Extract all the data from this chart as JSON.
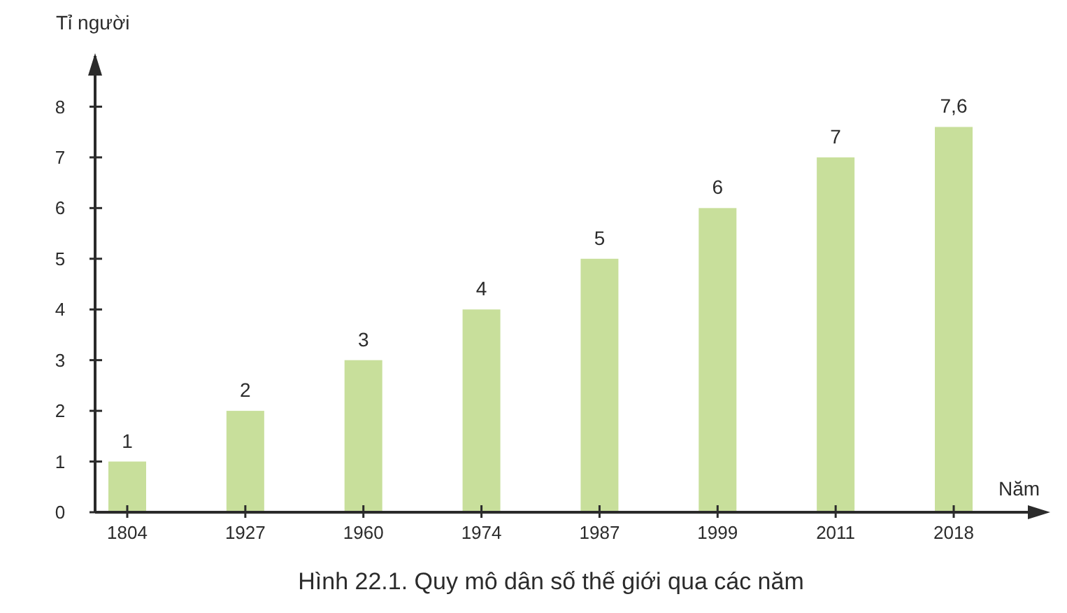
{
  "chart_data": {
    "type": "bar",
    "title": "Hình 22.1. Quy mô dân số thế giới qua các năm",
    "xlabel": "Năm",
    "ylabel": "Tỉ người",
    "categories": [
      "1804",
      "1927",
      "1960",
      "1974",
      "1987",
      "1999",
      "2011",
      "2018"
    ],
    "values": [
      1,
      2,
      3,
      4,
      5,
      6,
      7,
      7.6
    ],
    "color": "#c8df9b",
    "value_labels": [
      "1",
      "2",
      "3",
      "4",
      "5",
      "6",
      "7",
      "7,6"
    ],
    "ylim": [
      0,
      9
    ],
    "yticks": [
      0,
      1,
      2,
      3,
      4,
      5,
      6,
      7,
      8
    ]
  }
}
